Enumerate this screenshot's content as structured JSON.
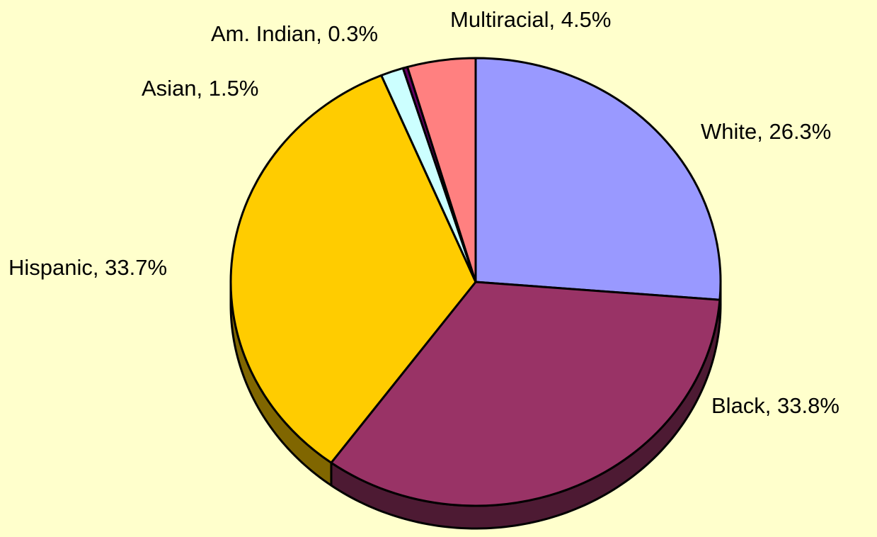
{
  "chart_data": {
    "type": "pie",
    "categories": [
      "White",
      "Black",
      "Hispanic",
      "Asian",
      "Am. Indian",
      "Multiracial"
    ],
    "values": [
      26.3,
      33.8,
      33.7,
      1.5,
      0.3,
      4.5
    ],
    "value_labels": [
      "White, 26.3%",
      "Black, 33.8%",
      "Hispanic, 33.7%",
      "Asian, 1.5%",
      "Am. Indian, 0.3%",
      "Multiracial, 4.5%"
    ],
    "colors": [
      "#9999ff",
      "#993366",
      "#ffcc00",
      "#ccffff",
      "#660066",
      "#ff8080"
    ]
  }
}
